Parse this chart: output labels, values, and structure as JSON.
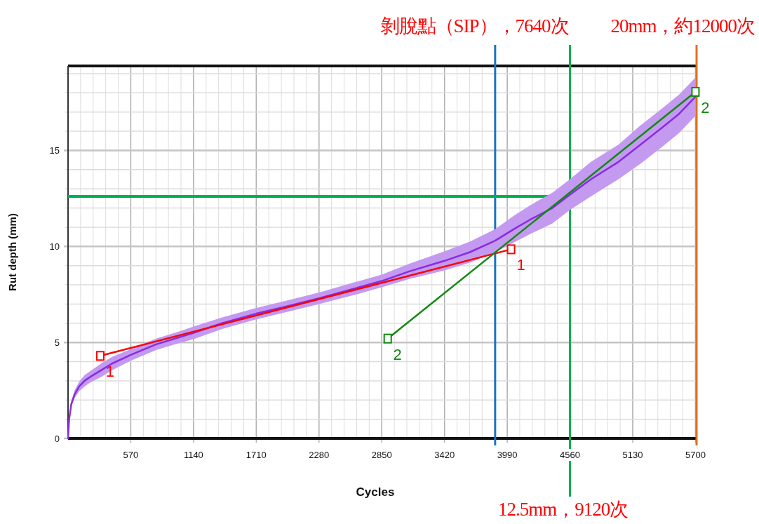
{
  "chart_data": {
    "type": "line",
    "xlabel": "Cycles",
    "ylabel": "Rut depth (mm)",
    "xlim": [
      0,
      5710
    ],
    "ylim": [
      0,
      19.4
    ],
    "xticks": [
      570,
      1140,
      1710,
      2280,
      2850,
      3420,
      3990,
      4560,
      5130,
      5700
    ],
    "yticks": [
      0,
      5,
      10,
      15
    ],
    "grid": true,
    "series": [
      {
        "color": "#8a2be2",
        "marker": "none",
        "x": [
          0,
          10,
          30,
          60,
          100,
          150,
          200,
          300,
          400,
          570,
          800,
          1000,
          1140,
          1400,
          1710,
          2000,
          2280,
          2600,
          2850,
          3100,
          3420,
          3650,
          3880,
          4050,
          4200,
          4400,
          4560,
          4750,
          5000,
          5200,
          5400,
          5550,
          5700
        ],
        "values": [
          0,
          1.0,
          1.8,
          2.3,
          2.7,
          3.0,
          3.2,
          3.55,
          3.9,
          4.35,
          4.9,
          5.25,
          5.5,
          6.0,
          6.5,
          6.9,
          7.3,
          7.8,
          8.2,
          8.7,
          9.25,
          9.7,
          10.3,
          10.9,
          11.4,
          12.0,
          12.7,
          13.5,
          14.4,
          15.3,
          16.2,
          16.9,
          17.8
        ],
        "lower": [
          0,
          0.9,
          1.65,
          2.1,
          2.45,
          2.7,
          2.9,
          3.2,
          3.55,
          4.05,
          4.6,
          4.95,
          5.17,
          5.7,
          6.2,
          6.6,
          7.0,
          7.47,
          7.87,
          8.3,
          8.75,
          9.15,
          9.7,
          10.2,
          10.65,
          11.2,
          11.9,
          12.6,
          13.5,
          14.3,
          15.2,
          15.9,
          16.8
        ],
        "upper": [
          0,
          1.1,
          1.95,
          2.5,
          2.95,
          3.3,
          3.5,
          3.9,
          4.25,
          4.65,
          5.2,
          5.55,
          5.83,
          6.3,
          6.8,
          7.2,
          7.6,
          8.13,
          8.53,
          9.1,
          9.75,
          10.25,
          10.9,
          11.6,
          12.15,
          12.8,
          13.5,
          14.4,
          15.3,
          16.3,
          17.2,
          17.9,
          18.8
        ]
      },
      {
        "color": "#ff0000",
        "marker": "square",
        "x": [
          293,
          4025
        ],
        "values": [
          4.3,
          9.85
        ]
      },
      {
        "color": "#108a10",
        "marker": "square",
        "x": [
          2904,
          5700
        ],
        "values": [
          5.2,
          18.05
        ]
      }
    ],
    "ref_lines": [
      {
        "axis": "x",
        "value": 3880,
        "label": "剝脫點（SIP），7640次",
        "color": "#1a74c4"
      },
      {
        "axis": "x",
        "value": 4560,
        "label": "12.5mm，9120次",
        "color": "#00b050"
      },
      {
        "axis": "x",
        "value": 5710,
        "label": "20mm，約12000次",
        "color": "#e07020"
      },
      {
        "axis": "y",
        "value": 12.6,
        "color": "#00b050"
      }
    ],
    "annotations": [
      {
        "text": "1",
        "x": 293,
        "y": 4.3
      },
      {
        "text": "1",
        "x": 4025,
        "y": 9.85
      },
      {
        "text": "2",
        "x": 2904,
        "y": 5.2
      },
      {
        "text": "2",
        "x": 5700,
        "y": 18.05
      }
    ]
  }
}
